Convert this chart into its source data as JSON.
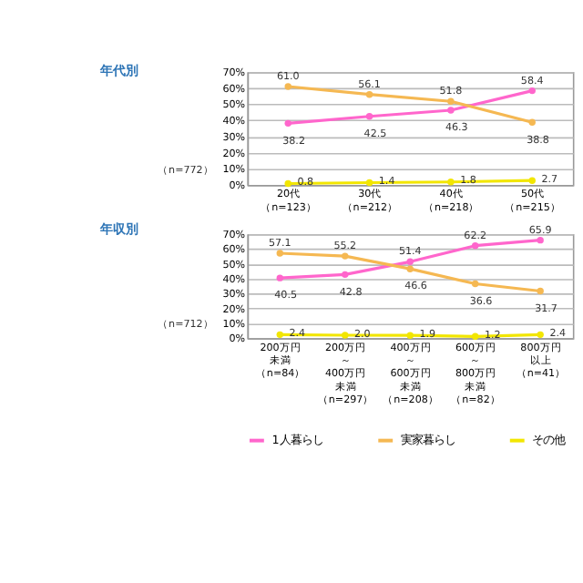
{
  "chart_data": [
    {
      "type": "line",
      "title": "年代別",
      "categories": [
        "20代（n=123）",
        "30代（n=212）",
        "40代（n=218）",
        "50代（n=215）"
      ],
      "series": [
        {
          "name": "1人暮らし",
          "color": "#ff66cc",
          "values": [
            38.2,
            42.5,
            46.3,
            58.4
          ]
        },
        {
          "name": "実家暮らし",
          "color": "#f5b852",
          "values": [
            61.0,
            56.1,
            51.8,
            38.8
          ],
          "value_labels": [
            "61.0",
            "56.1",
            "51.8",
            "38.8"
          ]
        },
        {
          "name": "その他",
          "color": "#f2e600",
          "values": [
            0.8,
            1.4,
            1.8,
            2.7
          ]
        }
      ],
      "ylim": [
        0,
        70
      ],
      "yticks": [
        {
          "value": 0,
          "label": "0%"
        },
        {
          "value": 10,
          "label": "10%"
        },
        {
          "value": 20,
          "label": "20%"
        },
        {
          "value": 30,
          "label": "30%"
        },
        {
          "value": 40,
          "label": "40%"
        },
        {
          "value": 50,
          "label": "50%"
        },
        {
          "value": 60,
          "label": "60%"
        },
        {
          "value": 70,
          "label": "70%"
        }
      ],
      "annotations": [
        "（n=772）"
      ],
      "data_labels": true,
      "grid": "y",
      "marker": "circle",
      "line_style": "solid",
      "legend": "bottom"
    },
    {
      "type": "line",
      "title": "年収別",
      "categories": [
        "200万円未満（n=84）",
        "200万円～400万円未満（n=297）",
        "400万円～600万円未満（n=208）",
        "600万円～800万円未満（n=82）",
        "800万円以上（n=41）"
      ],
      "series": [
        {
          "name": "1人暮らし",
          "color": "#ff66cc",
          "values": [
            40.5,
            42.8,
            51.4,
            62.2,
            65.9
          ]
        },
        {
          "name": "実家暮らし",
          "color": "#f5b852",
          "values": [
            57.1,
            55.2,
            46.6,
            36.6,
            31.7
          ]
        },
        {
          "name": "その他",
          "color": "#f2e600",
          "values": [
            2.4,
            2.0,
            1.9,
            1.2,
            2.4
          ],
          "value_labels": [
            "2.4",
            "2.0",
            "1.9",
            "1.2",
            "2.4"
          ]
        }
      ],
      "ylim": [
        0,
        70
      ],
      "yticks": [
        {
          "value": 0,
          "label": "0%"
        },
        {
          "value": 10,
          "label": "10%"
        },
        {
          "value": 20,
          "label": "20%"
        },
        {
          "value": 30,
          "label": "30%"
        },
        {
          "value": 40,
          "label": "40%"
        },
        {
          "value": 50,
          "label": "50%"
        },
        {
          "value": 60,
          "label": "60%"
        },
        {
          "value": 70,
          "label": "70%"
        }
      ],
      "annotations": [
        "（n=712）"
      ],
      "data_labels": true,
      "grid": "y",
      "marker": "circle",
      "line_style": "solid",
      "legend": "bottom"
    }
  ]
}
